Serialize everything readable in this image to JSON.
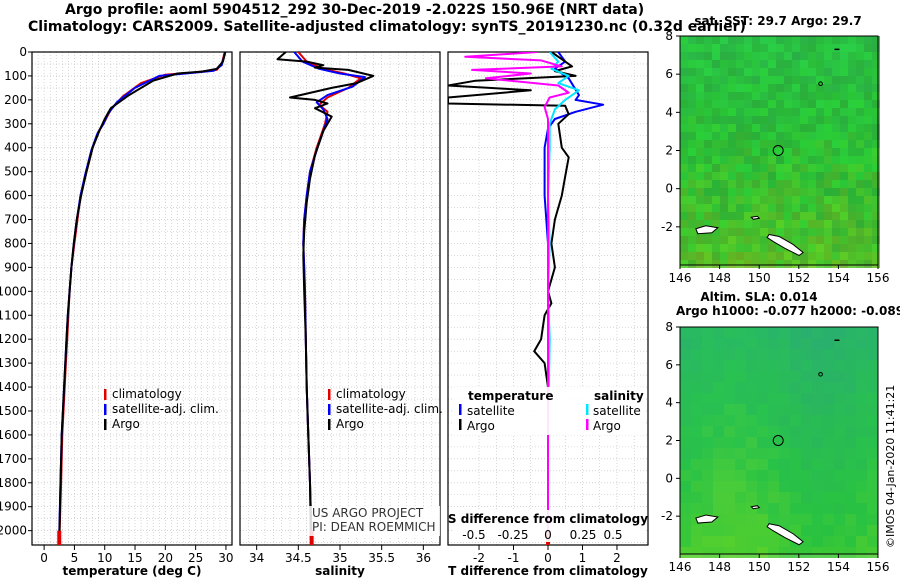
{
  "header": {
    "line1": "Argo profile: aoml 5904512_292 30-Dec-2019 -2.022S 150.96E (NRT data)",
    "line2": "Climatology: CARS2009. Satellite-adjusted climatology: synTS_20191230.nc (0.32d earlier)"
  },
  "colors": {
    "climatology": "#e00000",
    "satellite": "#0000ff",
    "argo": "#000000",
    "satS": "#00e5ff",
    "argoS": "#ff00ff",
    "grid": "#bdbdbd"
  },
  "chart_data": [
    {
      "id": "temperature",
      "type": "line",
      "xlabel": "temperature (deg C)",
      "ylim": [
        2060,
        0
      ],
      "xlim": [
        -2,
        31
      ],
      "xticks": [
        0,
        5,
        10,
        15,
        20,
        25,
        30
      ],
      "yticks": [
        0,
        100,
        200,
        300,
        400,
        500,
        600,
        700,
        800,
        900,
        1000,
        1100,
        1200,
        1300,
        1400,
        1500,
        1600,
        1700,
        1800,
        1900,
        2000
      ],
      "legend": [
        "climatology",
        "satellite-adj. clim.",
        "Argo"
      ],
      "series": [
        {
          "name": "climatology",
          "color": "#e00000",
          "points": [
            [
              29.8,
              0
            ],
            [
              29.3,
              50
            ],
            [
              28.5,
              75
            ],
            [
              25,
              85
            ],
            [
              20,
              95
            ],
            [
              16,
              130
            ],
            [
              13,
              185
            ],
            [
              11,
              240
            ],
            [
              10,
              290
            ],
            [
              9,
              330
            ],
            [
              8,
              400
            ],
            [
              7,
              500
            ],
            [
              6,
              600
            ],
            [
              5.5,
              700
            ],
            [
              5,
              800
            ],
            [
              4.5,
              900
            ],
            [
              4.2,
              1000
            ],
            [
              4,
              1100
            ],
            [
              3.8,
              1200
            ],
            [
              3.6,
              1300
            ],
            [
              3.4,
              1400
            ],
            [
              3.2,
              1500
            ],
            [
              3,
              1600
            ],
            [
              2.8,
              1800
            ],
            [
              2.5,
              2050
            ]
          ]
        },
        {
          "name": "satellite-adj. clim.",
          "color": "#0000ff",
          "points": [
            [
              29.9,
              0
            ],
            [
              29.3,
              55
            ],
            [
              28,
              78
            ],
            [
              24,
              88
            ],
            [
              19,
              100
            ],
            [
              15,
              150
            ],
            [
              12,
              210
            ],
            [
              10.5,
              260
            ],
            [
              9.8,
              300
            ],
            [
              8.8,
              340
            ],
            [
              7.8,
              410
            ],
            [
              6.8,
              510
            ],
            [
              6,
              600
            ],
            [
              5.4,
              700
            ],
            [
              4.9,
              800
            ],
            [
              4.5,
              900
            ],
            [
              4.2,
              1000
            ],
            [
              3.9,
              1100
            ],
            [
              3.7,
              1200
            ],
            [
              3.5,
              1300
            ],
            [
              3.3,
              1400
            ],
            [
              3.1,
              1500
            ],
            [
              2.9,
              1600
            ],
            [
              2.7,
              1800
            ],
            [
              2.45,
              2050
            ]
          ]
        },
        {
          "name": "Argo",
          "color": "#000000",
          "points": [
            [
              29.9,
              0
            ],
            [
              29.5,
              40
            ],
            [
              28.5,
              70
            ],
            [
              26,
              82
            ],
            [
              22,
              90
            ],
            [
              18,
              120
            ],
            [
              14,
              180
            ],
            [
              11,
              235
            ],
            [
              10,
              280
            ],
            [
              9.1,
              330
            ],
            [
              8,
              400
            ],
            [
              7,
              500
            ],
            [
              6.1,
              600
            ],
            [
              5.4,
              700
            ],
            [
              4.9,
              800
            ],
            [
              4.5,
              900
            ],
            [
              4.2,
              1000
            ],
            [
              3.9,
              1100
            ],
            [
              3.7,
              1200
            ],
            [
              3.5,
              1300
            ],
            [
              3.3,
              1400
            ],
            [
              3.1,
              1500
            ],
            [
              2.9,
              1600
            ],
            [
              2.7,
              1800
            ],
            [
              2.5,
              2040
            ]
          ]
        }
      ]
    },
    {
      "id": "salinity",
      "type": "line",
      "xlabel": "salinity",
      "ylim": [
        2060,
        0
      ],
      "xlim": [
        33.8,
        36.2
      ],
      "xticks": [
        34,
        34.5,
        35,
        35.5,
        36
      ],
      "legend": [
        "climatology",
        "satellite-adj. clim.",
        "Argo"
      ],
      "annotation": [
        "US ARGO PROJECT",
        "PI: DEAN ROEMMICH"
      ],
      "series": [
        {
          "name": "climatology",
          "color": "#e00000",
          "points": [
            [
              34.5,
              0
            ],
            [
              34.6,
              40
            ],
            [
              34.8,
              70
            ],
            [
              35.05,
              90
            ],
            [
              35.25,
              110
            ],
            [
              35.1,
              150
            ],
            [
              34.85,
              190
            ],
            [
              34.75,
              220
            ],
            [
              34.85,
              250
            ],
            [
              34.82,
              300
            ],
            [
              34.72,
              400
            ],
            [
              34.64,
              500
            ],
            [
              34.6,
              600
            ],
            [
              34.57,
              700
            ],
            [
              34.56,
              800
            ],
            [
              34.57,
              900
            ],
            [
              34.58,
              1000
            ],
            [
              34.59,
              1200
            ],
            [
              34.6,
              1400
            ],
            [
              34.62,
              1600
            ],
            [
              34.64,
              1800
            ],
            [
              34.66,
              2050
            ]
          ]
        },
        {
          "name": "satellite-adj. clim.",
          "color": "#0000ff",
          "points": [
            [
              34.45,
              0
            ],
            [
              34.55,
              40
            ],
            [
              34.75,
              70
            ],
            [
              35.0,
              90
            ],
            [
              35.3,
              105
            ],
            [
              35.15,
              145
            ],
            [
              34.85,
              180
            ],
            [
              34.72,
              210
            ],
            [
              34.8,
              240
            ],
            [
              34.85,
              280
            ],
            [
              34.73,
              400
            ],
            [
              34.64,
              500
            ],
            [
              34.6,
              600
            ],
            [
              34.57,
              700
            ],
            [
              34.56,
              800
            ],
            [
              34.57,
              900
            ],
            [
              34.58,
              1000
            ],
            [
              34.59,
              1200
            ],
            [
              34.6,
              1400
            ],
            [
              34.62,
              1600
            ],
            [
              34.64,
              1800
            ],
            [
              34.66,
              2050
            ]
          ]
        },
        {
          "name": "Argo",
          "color": "#000000",
          "points": [
            [
              34.35,
              0
            ],
            [
              34.25,
              30
            ],
            [
              34.6,
              40
            ],
            [
              34.8,
              55
            ],
            [
              34.7,
              65
            ],
            [
              35.1,
              75
            ],
            [
              35.4,
              100
            ],
            [
              35.2,
              130
            ],
            [
              34.9,
              150
            ],
            [
              34.4,
              190
            ],
            [
              34.7,
              200
            ],
            [
              34.85,
              215
            ],
            [
              34.7,
              235
            ],
            [
              34.9,
              270
            ],
            [
              34.8,
              330
            ],
            [
              34.7,
              430
            ],
            [
              34.64,
              530
            ],
            [
              34.6,
              630
            ],
            [
              34.57,
              750
            ],
            [
              34.56,
              850
            ],
            [
              34.57,
              1000
            ],
            [
              34.59,
              1200
            ],
            [
              34.6,
              1400
            ],
            [
              34.62,
              1600
            ],
            [
              34.64,
              1800
            ],
            [
              34.65,
              2040
            ]
          ]
        }
      ]
    },
    {
      "id": "difference",
      "type": "line",
      "xlabel": "T difference from climatology",
      "top_axis_label": "S difference from climatology",
      "ylim": [
        2060,
        0
      ],
      "xlim": [
        -2.9,
        2.9
      ],
      "xticks": [
        -2,
        -1,
        0,
        1,
        2
      ],
      "top_xticks": [
        "-0.5",
        "-0.25",
        "0",
        "0.25",
        "0.5"
      ],
      "legend_titles": [
        "temperature",
        "salinity"
      ],
      "legend": [
        "satellite",
        "Argo",
        "satellite",
        "Argo"
      ],
      "series": [
        {
          "name": "T satellite",
          "color": "#0000ff",
          "points": [
            [
              0.3,
              0
            ],
            [
              0.5,
              40
            ],
            [
              0.2,
              70
            ],
            [
              0.6,
              110
            ],
            [
              0.9,
              180
            ],
            [
              0.8,
              200
            ],
            [
              1.6,
              220
            ],
            [
              0.8,
              250
            ],
            [
              0.2,
              280
            ],
            [
              0,
              320
            ],
            [
              -0.1,
              400
            ],
            [
              -0.1,
              600
            ],
            [
              0,
              800
            ],
            [
              0,
              1000
            ],
            [
              0,
              1200
            ],
            [
              0,
              1500
            ],
            [
              0,
              2040
            ]
          ]
        },
        {
          "name": "T Argo",
          "color": "#000000",
          "points": [
            [
              0.1,
              0
            ],
            [
              0.4,
              30
            ],
            [
              0.7,
              60
            ],
            [
              0.2,
              80
            ],
            [
              0.8,
              100
            ],
            [
              -2.1,
              120
            ],
            [
              -2.9,
              140
            ],
            [
              -0.5,
              160
            ],
            [
              -2.9,
              190
            ],
            [
              -2.9,
              215
            ],
            [
              0.5,
              225
            ],
            [
              0.6,
              260
            ],
            [
              0.3,
              300
            ],
            [
              0.4,
              400
            ],
            [
              0.6,
              440
            ],
            [
              0.5,
              520
            ],
            [
              0.4,
              600
            ],
            [
              0.2,
              700
            ],
            [
              0.1,
              800
            ],
            [
              0.2,
              900
            ],
            [
              0,
              1000
            ],
            [
              0.1,
              1050
            ],
            [
              -0.1,
              1100
            ],
            [
              -0.2,
              1200
            ],
            [
              -0.4,
              1250
            ],
            [
              -0.1,
              1300
            ],
            [
              0,
              1400
            ],
            [
              0,
              1600
            ],
            [
              0,
              1800
            ],
            [
              0,
              2040
            ]
          ]
        },
        {
          "name": "S satellite",
          "color": "#00e5ff",
          "points": [
            [
              0.05,
              0
            ],
            [
              0.3,
              40
            ],
            [
              0.1,
              70
            ],
            [
              0.6,
              100
            ],
            [
              0.3,
              130
            ],
            [
              0.9,
              160
            ],
            [
              0.5,
              200
            ],
            [
              0.2,
              240
            ],
            [
              0.05,
              300
            ],
            [
              0.05,
              400
            ],
            [
              0,
              600
            ],
            [
              0.05,
              800
            ],
            [
              0,
              1000
            ],
            [
              0.05,
              1200
            ],
            [
              0,
              1600
            ],
            [
              0,
              2040
            ]
          ]
        },
        {
          "name": "S Argo",
          "color": "#ff00ff",
          "points": [
            [
              -0.3,
              0
            ],
            [
              -2.4,
              20
            ],
            [
              -0.2,
              35
            ],
            [
              0.4,
              60
            ],
            [
              -2.2,
              75
            ],
            [
              -0.5,
              90
            ],
            [
              -1.8,
              110
            ],
            [
              0.3,
              140
            ],
            [
              0.6,
              170
            ],
            [
              0.05,
              190
            ],
            [
              -0.1,
              230
            ],
            [
              0,
              280
            ],
            [
              0,
              400
            ],
            [
              0,
              600
            ],
            [
              0,
              800
            ],
            [
              0,
              1000
            ],
            [
              0,
              1400
            ],
            [
              0,
              2040
            ]
          ]
        }
      ]
    }
  ],
  "maps": {
    "sst": {
      "title": "sat. SST: 29.7 Argo: 29.7",
      "xlim": [
        146,
        156
      ],
      "ylim": [
        -4,
        8
      ],
      "xticks": [
        146,
        148,
        150,
        152,
        154,
        156
      ],
      "yticks": [
        -2,
        0,
        2,
        4,
        6,
        8
      ],
      "argo_lon": 150.96,
      "argo_lat": -2.022,
      "marker_y": 2
    },
    "sla": {
      "title1": "Altim. SLA: 0.014",
      "title2": "Argo h1000: -0.077 h2000: -0.089",
      "xlim": [
        146,
        156
      ],
      "ylim": [
        -4,
        8
      ],
      "xticks": [
        146,
        148,
        150,
        152,
        154,
        156
      ],
      "yticks": [
        -2,
        0,
        2,
        4,
        6,
        8
      ],
      "marker_y": 2
    }
  },
  "footer": {
    "stamp": "©IMOS 04-Jan-2020 11:41:21"
  }
}
